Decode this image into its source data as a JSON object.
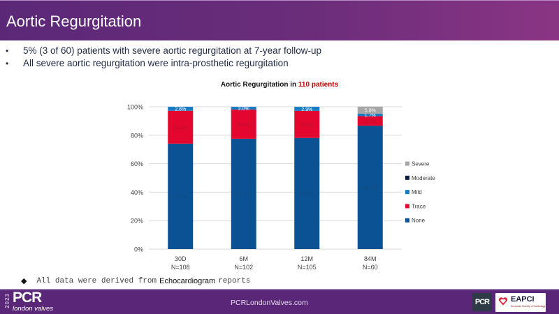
{
  "header": {
    "title": "Aortic Regurgitation"
  },
  "bullets": [
    "5% (3 of 60) patients with severe aortic regurgitation at 7-year follow-up",
    "All  severe aortic regurgitation were intra-prosthetic regurgitation"
  ],
  "bullet_glyph": "•",
  "chart_title": {
    "prefix": "Aortic Regurgitation in ",
    "highlight": "110 patients"
  },
  "note": {
    "glyph": "◆",
    "part1": "All data were derived from",
    "part2": "Echocardiogram",
    "part3": "reports"
  },
  "footer": {
    "url": "PCRLondonValves.com",
    "logo_year": "2023",
    "logo_name": "PCR",
    "logo_sub": "london valves",
    "badge": "PCR",
    "eapci_name": "EAPCI",
    "eapci_sub": "European Society of Cardiology"
  },
  "chart_data": {
    "type": "bar",
    "stacked": true,
    "percent": true,
    "title": "Aortic Regurgitation in 110 patients",
    "xlabel": "",
    "ylabel": "",
    "ylim": [
      0,
      100
    ],
    "yticks": [
      "0%",
      "20%",
      "40%",
      "60%",
      "80%",
      "100%"
    ],
    "grid": true,
    "legend_position": "right",
    "categories": [
      "30D",
      "6M",
      "12M",
      "84M"
    ],
    "category_sublabels": [
      "N=108",
      "N=102",
      "N=105",
      "N=60"
    ],
    "series": [
      {
        "name": "None",
        "color": "#0a5293",
        "values": [
          74.1,
          77.5,
          78.1,
          86.7
        ],
        "labels": [
          "74.1%",
          "77.5%",
          "78.1%",
          "86.7%"
        ]
      },
      {
        "name": "Trace",
        "color": "#e3062f",
        "values": [
          23.1,
          20.5,
          19.0,
          6.7
        ],
        "labels": [
          "23.1%",
          "20.5%",
          "19.0%",
          "6.7%"
        ]
      },
      {
        "name": "Mild",
        "color": "#1a7dc4",
        "values": [
          2.8,
          2.0,
          2.9,
          1.7
        ],
        "labels": [
          "2.8%",
          "2.0%",
          "2.9%",
          "1.7%"
        ]
      },
      {
        "name": "Moderate",
        "color": "#0f1e45",
        "values": [
          0,
          0,
          0,
          0
        ],
        "labels": [
          "",
          "",
          "",
          ""
        ]
      },
      {
        "name": "Severe",
        "color": "#a6a6a6",
        "values": [
          0,
          0,
          0,
          5.0
        ],
        "labels": [
          "",
          "",
          "",
          "5.0%"
        ]
      }
    ],
    "legend_order": [
      "Severe",
      "Moderate",
      "Mild",
      "Trace",
      "None"
    ]
  }
}
